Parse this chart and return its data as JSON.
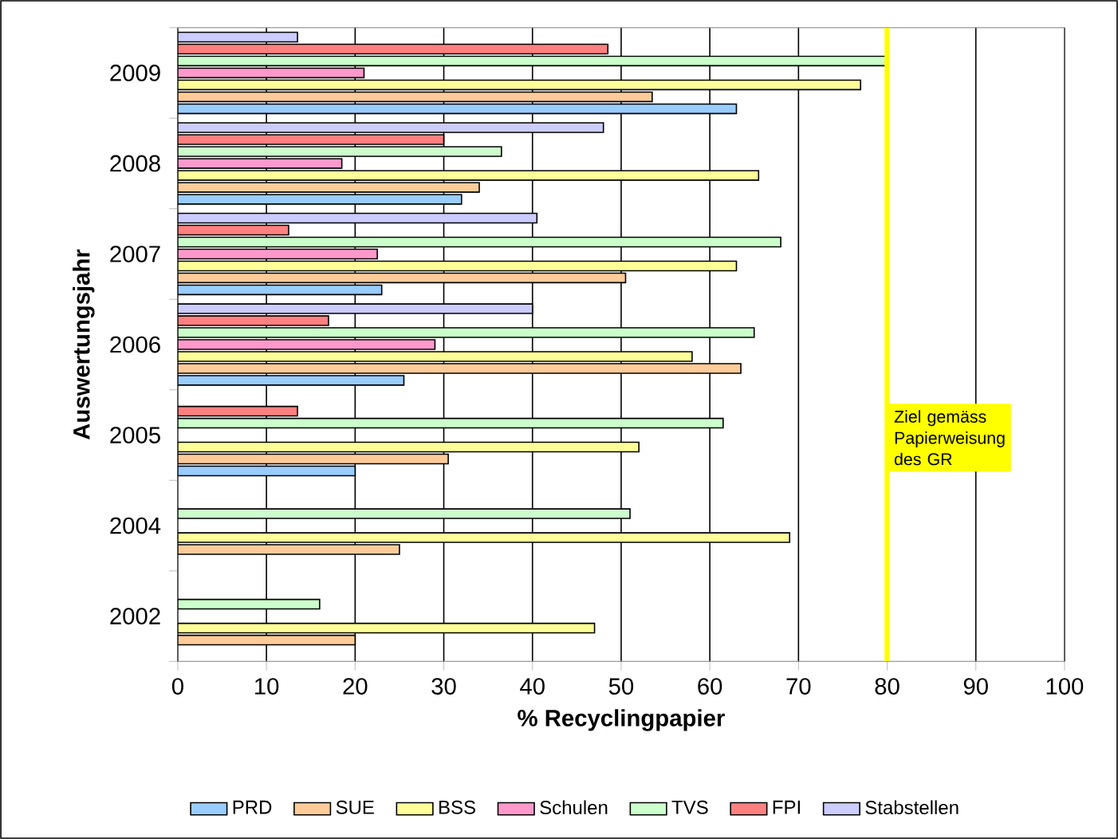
{
  "chart_data": {
    "type": "bar",
    "orientation": "horizontal",
    "categories": [
      "2009",
      "2008",
      "2007",
      "2006",
      "2005",
      "2004",
      "2002"
    ],
    "series": [
      {
        "name": "PRD",
        "color": "#99ccff",
        "values": [
          63,
          32,
          23,
          25.5,
          20,
          null,
          null
        ]
      },
      {
        "name": "SUE",
        "color": "#ffcc99",
        "values": [
          53.5,
          34,
          50.5,
          63.5,
          30.5,
          25,
          20
        ]
      },
      {
        "name": "BSS",
        "color": "#ffff99",
        "values": [
          77,
          65.5,
          63,
          58,
          52,
          69,
          47
        ]
      },
      {
        "name": "Schulen",
        "color": "#ff99cc",
        "values": [
          21,
          18.5,
          22.5,
          29,
          null,
          null,
          null
        ]
      },
      {
        "name": "TVS",
        "color": "#ccffcc",
        "values": [
          80,
          36.5,
          68,
          65,
          61.5,
          51,
          16
        ]
      },
      {
        "name": "FPI",
        "color": "#ff8080",
        "values": [
          48.5,
          30,
          12.5,
          17,
          13.5,
          null,
          null
        ]
      },
      {
        "name": "Stabstellen",
        "color": "#ccccff",
        "values": [
          13.5,
          48,
          40.5,
          40,
          null,
          null,
          null
        ]
      }
    ],
    "xlim": [
      0,
      100
    ],
    "xticks": [
      0,
      10,
      20,
      30,
      40,
      50,
      60,
      70,
      80,
      90,
      100
    ],
    "xlabel": "% Recyclingpapier",
    "ylabel": "Auswertungsjahr",
    "grid": "x",
    "legend": "bottom",
    "ref_lines": [
      {
        "axis": "x",
        "value": 80,
        "label": "Ziel gemäss Papierweisung des GR",
        "color": "#ffff00"
      }
    ]
  }
}
